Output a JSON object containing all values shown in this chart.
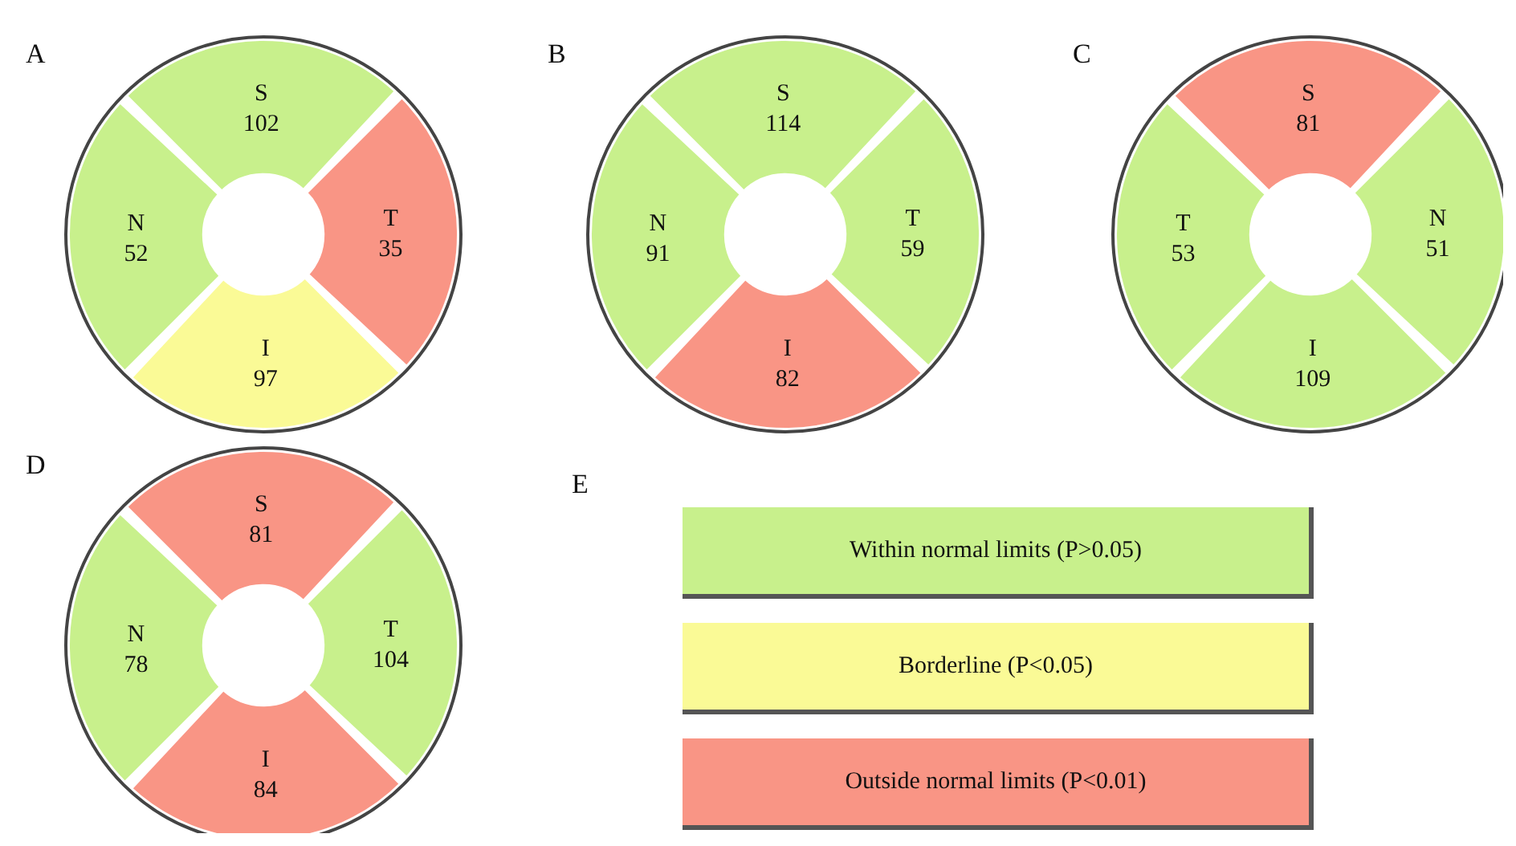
{
  "chart_data": [
    {
      "type": "other",
      "title": "A",
      "categories": [
        "S",
        "T",
        "I",
        "N"
      ],
      "values": [
        102,
        35,
        97,
        52
      ],
      "data_labels": true,
      "colors": [
        "#c8f08c",
        "#f99585",
        "#fafa96",
        "#c8f08c"
      ]
    },
    {
      "type": "other",
      "title": "B",
      "categories": [
        "S",
        "T",
        "I",
        "N"
      ],
      "values": [
        114,
        59,
        82,
        91
      ],
      "data_labels": true,
      "colors": [
        "#c8f08c",
        "#c8f08c",
        "#f99585",
        "#c8f08c"
      ]
    },
    {
      "type": "other",
      "title": "C",
      "categories": [
        "S",
        "N",
        "I",
        "T"
      ],
      "values": [
        81,
        51,
        109,
        53
      ],
      "data_labels": true,
      "colors": [
        "#f99585",
        "#c8f08c",
        "#c8f08c",
        "#c8f08c"
      ]
    },
    {
      "type": "other",
      "title": "D",
      "categories": [
        "S",
        "T",
        "I",
        "N"
      ],
      "values": [
        81,
        104,
        84,
        78
      ],
      "data_labels": true,
      "colors": [
        "#f99585",
        "#c8f08c",
        "#f99585",
        "#c8f08c"
      ]
    },
    {
      "type": "other",
      "title": "E",
      "categories": [
        "Within normal limits (P>0.05)",
        "Borderline (P<0.05)",
        "Outside normal limits (P<0.01)"
      ],
      "colors": [
        "#c8f08c",
        "#fafa96",
        "#f99585"
      ]
    }
  ]
}
